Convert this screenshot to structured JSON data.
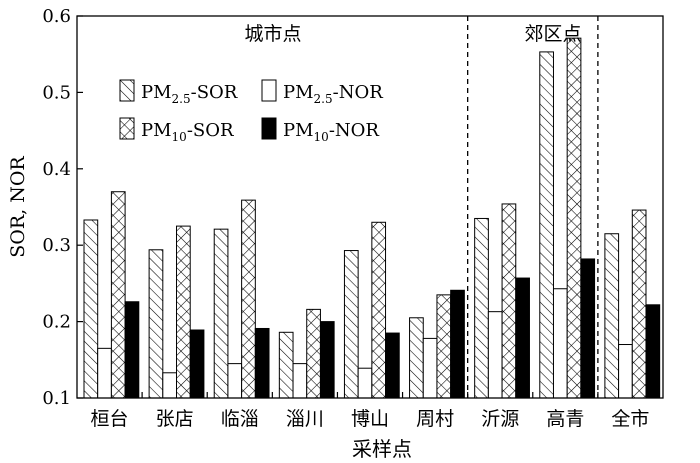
{
  "chart_data": {
    "type": "bar",
    "title": "",
    "xlabel": "采样点",
    "ylabel": "SOR, NOR",
    "ylim": [
      0.1,
      0.6
    ],
    "yticks": [
      "0.1",
      "0.2",
      "0.3",
      "0.4",
      "0.5",
      "0.6"
    ],
    "categories": [
      "桓台",
      "张店",
      "临淄",
      "淄川",
      "博山",
      "周村",
      "沂源",
      "高青",
      "全市"
    ],
    "series": [
      {
        "name": "PM2.5-SOR",
        "fill": "diag",
        "values": [
          0.333,
          0.294,
          0.321,
          0.186,
          0.293,
          0.205,
          0.335,
          0.553,
          0.315
        ]
      },
      {
        "name": "PM2.5-NOR",
        "fill": "white",
        "values": [
          0.165,
          0.133,
          0.145,
          0.145,
          0.139,
          0.178,
          0.213,
          0.243,
          0.17
        ]
      },
      {
        "name": "PM10-SOR",
        "fill": "cross",
        "values": [
          0.37,
          0.325,
          0.359,
          0.216,
          0.33,
          0.235,
          0.354,
          0.571,
          0.346
        ]
      },
      {
        "name": "PM10-NOR",
        "fill": "black",
        "values": [
          0.226,
          0.189,
          0.191,
          0.2,
          0.185,
          0.241,
          0.257,
          0.282,
          0.222
        ]
      }
    ],
    "regions": [
      {
        "label": "城市点"
      },
      {
        "label": "郊区点"
      }
    ],
    "legend": {
      "placement": "top-left",
      "items": [
        {
          "base": "PM",
          "sub": "2.5",
          "suffix": "-SOR",
          "fill": "diag"
        },
        {
          "base": "PM",
          "sub": "2.5",
          "suffix": "-NOR",
          "fill": "white"
        },
        {
          "base": "PM",
          "sub": "10",
          "suffix": "-SOR",
          "fill": "cross"
        },
        {
          "base": "PM",
          "sub": "10",
          "suffix": "-NOR",
          "fill": "black"
        }
      ]
    },
    "grid": false
  }
}
